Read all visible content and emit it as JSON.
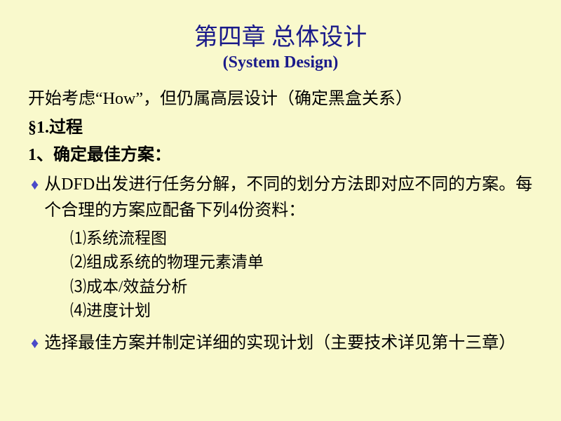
{
  "colors": {
    "background": "#f9f9cc",
    "title_color": "#1a1a8a",
    "body_text": "#000000",
    "bullet_color": "#4a4ac8"
  },
  "typography": {
    "title_fontsize": 34,
    "subtitle_fontsize": 24,
    "body_fontsize": 24,
    "list_fontsize": 23,
    "title_font": "SimSun",
    "subtitle_font": "Times New Roman"
  },
  "title": {
    "main": "第四章 总体设计",
    "sub": "(System  Design)"
  },
  "intro": "开始考虑“How”，但仍属高层设计（确定黑盒关系）",
  "section": "§1.过程",
  "subheading": "1、确定最佳方案：",
  "bullets": [
    {
      "marker": "♦",
      "text": "从DFD出发进行任务分解，不同的划分方法即对应不同的方案。每个合理的方案应配备下列4份资料："
    },
    {
      "marker": "♦",
      "text": "选择最佳方案并制定详细的实现计划（主要技术详见第十三章）"
    }
  ],
  "numbered_items": [
    "⑴系统流程图",
    "⑵组成系统的物理元素清单",
    "⑶成本/效益分析",
    "⑷进度计划"
  ]
}
